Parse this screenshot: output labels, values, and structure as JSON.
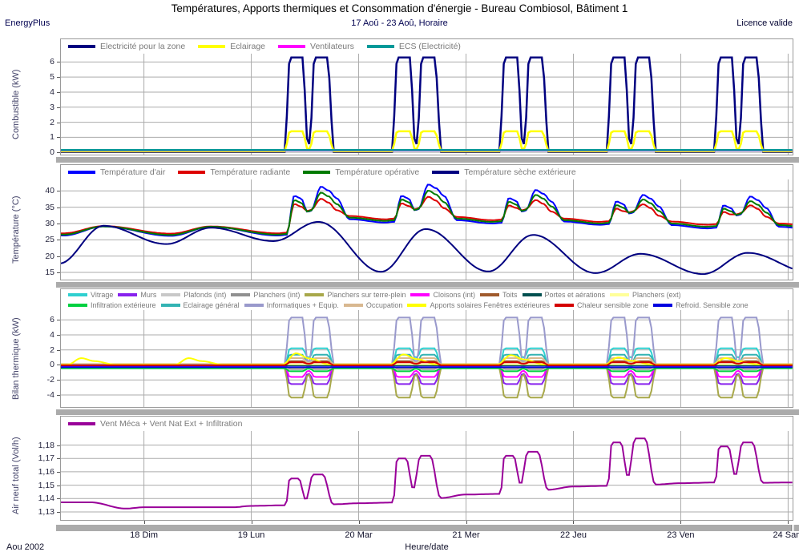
{
  "header": {
    "title": "Températures, Apports thermiques et Consommation d'énergie - Bureau Combiosol, Bâtiment 1",
    "app": "EnergyPlus",
    "subtitle": "17 Aoû - 23 Aoû, Horaire",
    "license": "Licence valide"
  },
  "footer": {
    "month_label": "Aou 2002",
    "xaxis_title": "Heure/date"
  },
  "x_axis": {
    "view_start_hour": 5.44,
    "view_end_hour": 169.0,
    "tick_hours": [
      24,
      48,
      72,
      96,
      120,
      144,
      168
    ],
    "day_labels": [
      "18 Dim",
      "19 Lun",
      "20 Mar",
      "21 Mer",
      "22 Jeu",
      "23 Ven",
      "24 Sam"
    ]
  },
  "schedule": {
    "workdays": [
      2,
      3,
      4,
      5,
      6
    ],
    "rise_start": 7.6,
    "rise_end": 8.5,
    "lunch_fall_start": 11.6,
    "lunch_start": 12.5,
    "lunch_end": 13.2,
    "lunch_rise_end": 14.0,
    "fall_start": 17.2,
    "fall_end": 18.3
  },
  "chart_data": [
    {
      "type": "line",
      "ylabel": "Combustible (kW)",
      "ylim": [
        -0.15,
        6.55
      ],
      "yticks": [
        0,
        1,
        2,
        3,
        4,
        5,
        6
      ],
      "series": [
        {
          "name": "Electricité pour la zone",
          "color": "#000080",
          "width": 2.5,
          "gen": {
            "type": "workday",
            "peak": 6.3,
            "lunch": 0.55,
            "base": 0.03
          }
        },
        {
          "name": "Eclairage",
          "color": "#ffff00",
          "width": 2.5,
          "gen": {
            "type": "workday",
            "peak": 1.4,
            "lunch": 0.2,
            "base": 0.07
          }
        },
        {
          "name": "Ventilateurs",
          "color": "#ff00ff",
          "width": 2,
          "gen": {
            "type": "flat",
            "value": 0.12
          }
        },
        {
          "name": "ECS (Electricité)",
          "color": "#009999",
          "width": 2.5,
          "gen": {
            "type": "flat",
            "value": 0.16
          }
        }
      ]
    },
    {
      "type": "line",
      "ylabel": "Température (°C)",
      "ylim": [
        12.8,
        43.5
      ],
      "yticks": [
        15,
        20,
        25,
        30,
        35,
        40
      ],
      "series": [
        {
          "name": "Température d'air",
          "color": "#0000ff",
          "width": 2,
          "gen": {
            "type": "indoor",
            "night": [
              26.3,
              26.2,
              26.3,
              30.3,
              30.0,
              29.6,
              28.5,
              28.0
            ],
            "bump": 2.8,
            "p1": [
              null,
              null,
              38.5,
              38.5,
              37.8,
              36.8,
              35.6
            ],
            "dip": [
              null,
              null,
              33.5,
              34.0,
              33.6,
              33.0,
              32.4
            ],
            "p2": [
              null,
              null,
              41.3,
              42.0,
              40.3,
              38.8,
              38.3
            ]
          }
        },
        {
          "name": "Température radiante",
          "color": "#dd0000",
          "width": 2,
          "gen": {
            "type": "indoor",
            "night": [
              27.0,
              26.9,
              27.0,
              31.3,
              31.0,
              30.5,
              29.6,
              29.0
            ],
            "bump": 2.2,
            "p1": [
              null,
              null,
              36.0,
              36.2,
              35.6,
              34.6,
              33.6
            ],
            "dip": [
              null,
              null,
              33.8,
              34.3,
              34.0,
              33.4,
              32.8
            ],
            "p2": [
              null,
              null,
              37.6,
              38.2,
              37.2,
              35.9,
              35.6
            ]
          }
        },
        {
          "name": "Température opérative",
          "color": "#007a00",
          "width": 2,
          "gen": {
            "type": "indoor",
            "night": [
              26.6,
              26.5,
              26.6,
              30.8,
              30.5,
              30.0,
              29.0,
              28.5
            ],
            "bump": 2.5,
            "p1": [
              null,
              null,
              37.2,
              37.4,
              36.7,
              35.7,
              34.6
            ],
            "dip": [
              null,
              null,
              33.6,
              34.1,
              33.8,
              33.2,
              32.6
            ],
            "p2": [
              null,
              null,
              39.5,
              40.1,
              38.8,
              37.4,
              36.9
            ]
          }
        },
        {
          "name": "Température sèche extérieure",
          "color": "#000080",
          "width": 2,
          "gen": {
            "type": "diurnal",
            "min_hour": 5,
            "max_hour": 15,
            "mins": [
              17.7,
              23.7,
              24.6,
              15.2,
              15.3,
              14.8,
              14.5,
              15.0
            ],
            "maxs": [
              29.3,
              28.7,
              30.5,
              28.3,
              26.5,
              20.7,
              21.0,
              null
            ]
          }
        }
      ]
    },
    {
      "type": "line",
      "ylabel": "Bilan thermique (kW)",
      "ylim": [
        -5.6,
        7.3
      ],
      "yticks": [
        -4,
        -2,
        0,
        2,
        4,
        6
      ],
      "legend_rows": [
        [
          0,
          1,
          2,
          3,
          4,
          5,
          6,
          7,
          8
        ],
        [
          9,
          10,
          11,
          12,
          13,
          14,
          15
        ]
      ],
      "series": [
        {
          "name": "Vitrage",
          "color": "#2fd0d0",
          "width": 2,
          "gen": {
            "type": "workday",
            "peak": 2.2,
            "lunch": 1.0,
            "base": -0.25
          }
        },
        {
          "name": "Murs",
          "color": "#8822ee",
          "width": 2,
          "gen": {
            "type": "workday",
            "peak": -2.55,
            "lunch": -1.2,
            "base": -0.15
          }
        },
        {
          "name": "Plafonds (int)",
          "color": "#c8c8c8",
          "width": 2,
          "gen": {
            "type": "workday",
            "peak": -0.6,
            "lunch": -0.3,
            "base": -0.1
          }
        },
        {
          "name": "Planchers (int)",
          "color": "#909090",
          "width": 2,
          "gen": {
            "type": "workday",
            "peak": -0.5,
            "lunch": -0.25,
            "base": -0.1
          }
        },
        {
          "name": "Planchers sur terre-plein",
          "color": "#a8a84a",
          "width": 2,
          "gen": {
            "type": "workday",
            "peak": -4.35,
            "lunch": -1.3,
            "base": -0.35
          }
        },
        {
          "name": "Cloisons (int)",
          "color": "#ff00ff",
          "width": 2,
          "gen": {
            "type": "workday",
            "peak": -1.6,
            "lunch": -0.8,
            "base": -0.12
          }
        },
        {
          "name": "Toits",
          "color": "#a05a2c",
          "width": 2,
          "gen": {
            "type": "workday",
            "peak": 0.5,
            "lunch": 0.2,
            "base": 0.1
          }
        },
        {
          "name": "Portes et aérations",
          "color": "#005050",
          "width": 2,
          "gen": {
            "type": "flat",
            "value": -0.06
          }
        },
        {
          "name": "Planchers (ext)",
          "color": "#ffff99",
          "width": 2,
          "gen": {
            "type": "flat",
            "value": 0.08
          }
        },
        {
          "name": "Infiltration extérieure",
          "color": "#00d040",
          "width": 2,
          "gen": {
            "type": "workday",
            "peak": -0.85,
            "lunch": -0.5,
            "base": -0.45
          }
        },
        {
          "name": "Eclairage général",
          "color": "#33b3b3",
          "width": 2,
          "gen": {
            "type": "workday",
            "peak": 1.35,
            "lunch": 0.25,
            "base": 0.02
          }
        },
        {
          "name": "Informatiques + Equip.",
          "color": "#9999cc",
          "width": 2,
          "gen": {
            "type": "workday",
            "peak": 6.3,
            "lunch": 0.3,
            "base": 0.02
          }
        },
        {
          "name": "Occupation",
          "color": "#d8b890",
          "width": 2,
          "gen": {
            "type": "workday",
            "peak": 0.9,
            "lunch": 0.3,
            "base": 0.0
          }
        },
        {
          "name": "Apports solaires Fenêtres extérieures",
          "color": "#ffff00",
          "width": 2,
          "gen": {
            "type": "dayhump",
            "base": 0.05,
            "peaks": [
              0.9,
              0.9,
              1.55,
              1.4,
              1.3,
              1.0,
              0.9
            ]
          }
        },
        {
          "name": "Chaleur sensible zone",
          "color": "#d40000",
          "width": 2,
          "gen": {
            "type": "workday",
            "peak": 0.35,
            "lunch": 0.15,
            "base": -0.05
          }
        },
        {
          "name": "Refroid. Sensible zone",
          "color": "#0000e0",
          "width": 2,
          "gen": {
            "type": "flat",
            "value": -0.3
          }
        }
      ]
    },
    {
      "type": "line",
      "ylabel": "Air neuf total (Vol/h)",
      "ylim": [
        1.124,
        1.1905
      ],
      "yticks": [
        1.13,
        1.14,
        1.15,
        1.16,
        1.17,
        1.18
      ],
      "ytick_labels": [
        "1,13",
        "1,14",
        "1,15",
        "1,16",
        "1,17",
        "1,18"
      ],
      "series": [
        {
          "name": "Vent Méca + Vent Nat Ext + Infiltration",
          "color": "#990099",
          "width": 2,
          "gen": {
            "type": "vent",
            "night": [
              1.1372,
              1.1335,
              1.1345,
              1.1365,
              1.143,
              1.149,
              1.1515,
              1.152
            ],
            "p1": [
              null,
              null,
              1.155,
              1.17,
              1.172,
              1.182,
              1.179
            ],
            "p2": [
              null,
              null,
              1.158,
              1.172,
              1.175,
              1.185,
              1.182
            ],
            "dip": [
              null,
              null,
              1.139,
              1.147,
              1.1505,
              1.156,
              1.157
            ]
          }
        }
      ]
    }
  ]
}
